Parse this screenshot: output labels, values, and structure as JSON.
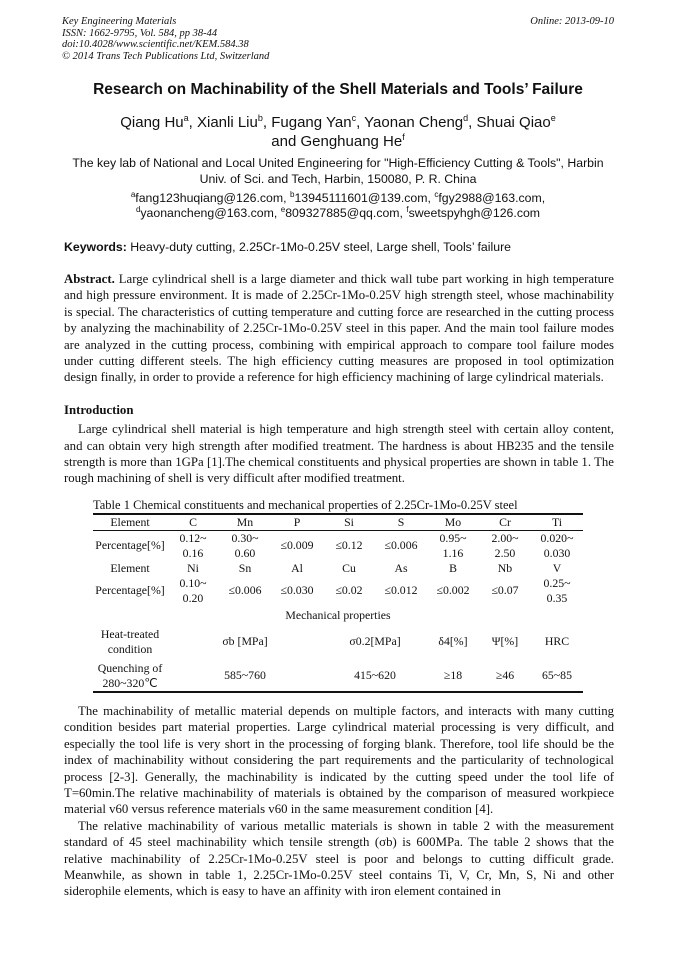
{
  "header": {
    "journal": "Key Engineering Materials",
    "issn": "ISSN: 1662-9795, Vol. 584, pp 38-44",
    "doi": "doi:10.4028/www.scientific.net/KEM.584.38",
    "copyright": "© 2014 Trans Tech Publications Ltd, Switzerland",
    "online": "Online: 2013-09-10"
  },
  "title": "Research on Machinability of the Shell Materials and Tools’ Failure",
  "authors": [
    {
      "name": "Qiang Hu",
      "sup": "a"
    },
    {
      "name": "Xianli Liu",
      "sup": "b"
    },
    {
      "name": "Fugang Yan",
      "sup": "c"
    },
    {
      "name": "Yaonan Cheng",
      "sup": "d"
    },
    {
      "name": "Shuai Qiao",
      "sup": "e"
    },
    {
      "name": "Genghuang He",
      "sup": "f"
    }
  ],
  "and": "and",
  "affiliation": "The key lab of National and Local United Engineering for \"High-Efficiency Cutting & Tools\", Harbin Univ. of Sci. and Tech, Harbin, 150080, P. R. China",
  "emails": [
    {
      "sup": "a",
      "addr": "fang123huqiang@126.com,"
    },
    {
      "sup": "b",
      "addr": "13945111601@139.com,"
    },
    {
      "sup": "c",
      "addr": "fgy2988@163.com,"
    },
    {
      "sup": "d",
      "addr": "yaonancheng@163.com,"
    },
    {
      "sup": "e",
      "addr": "809327885@qq.com,"
    },
    {
      "sup": "f",
      "addr": "sweetspyhgh@126.com"
    }
  ],
  "keywords": {
    "label": "Keywords:",
    "text": " Heavy-duty cutting, 2.25Cr-1Mo-0.25V steel, Large shell, Tools’ failure"
  },
  "abstract": {
    "label": "Abstract.",
    "text": " Large cylindrical shell is a large diameter and thick wall tube part working in high temperature and high pressure environment. It is made of 2.25Cr-1Mo-0.25V high strength steel, whose machinability is special. The characteristics of cutting temperature and cutting force are researched in the cutting process by analyzing the machinability of 2.25Cr-1Mo-0.25V steel in this paper. And the main tool failure modes are analyzed in the cutting process, combining with empirical approach to compare tool failure modes under cutting different steels. The high efficiency cutting measures are proposed in tool optimization design finally, in order to provide a reference for high efficiency machining of large cylindrical materials."
  },
  "intro": {
    "heading": "Introduction",
    "p1": "Large cylindrical shell material is high temperature and high strength steel with certain alloy content, and can obtain very high strength after modified treatment. The hardness is about HB235 and the tensile strength is more than 1GPa [1].The chemical constituents and physical properties are shown in table 1. The rough machining of shell is very difficult after modified treatment."
  },
  "table1": {
    "caption": "Table 1    Chemical constituents and mechanical properties of 2.25Cr-1Mo-0.25V steel",
    "rows": [
      [
        "Element",
        "C",
        "Mn",
        "P",
        "Si",
        "S",
        "Mo",
        "Cr",
        "Ti"
      ],
      [
        "Percentage[%]",
        "0.12~ 0.16",
        "0.30~ 0.60",
        "≤0.009",
        "≤0.12",
        "≤0.006",
        "0.95~ 1.16",
        "2.00~ 2.50",
        "0.020~ 0.030"
      ],
      [
        "Element",
        "Ni",
        "Sn",
        "Al",
        "Cu",
        "As",
        "B",
        "Nb",
        "V"
      ],
      [
        "Percentage[%]",
        "0.10~ 0.20",
        "≤0.006",
        "≤0.030",
        "≤0.02",
        "≤0.012",
        "≤0.002",
        "≤0.07",
        "0.25~ 0.35"
      ]
    ],
    "mech_title": "Mechanical properties",
    "mech_header": [
      "Heat-treated condition",
      "σb [MPa]",
      "σ0.2[MPa]",
      "δ4[%]",
      "Ψ[%]",
      "HRC"
    ],
    "mech_row": [
      "Quenching of 280~320℃",
      "585~760",
      "415~620",
      "≥18",
      "≥46",
      "65~85"
    ]
  },
  "body": {
    "p2": "The machinability of metallic material depends on multiple factors, and interacts with many cutting condition besides part material properties. Large cylindrical material processing is very difficult, and especially the tool life is very short in the processing of forging blank. Therefore, tool life should be the index of machinability without considering the part requirements and the particularity of technological process [2-3]. Generally, the machinability is indicated by the cutting speed under the tool life of T=60min.The relative machinability of materials is obtained by the comparison of measured workpiece material v60 versus reference materials v60 in the same measurement condition [4].",
    "p3": "The relative machinability of various metallic materials is shown in table 2 with the measurement standard of 45 steel machinability which tensile strength (σb) is 600MPa. The table 2 shows that the relative machinability of 2.25Cr-1Mo-0.25V steel is poor and belongs to cutting difficult grade. Meanwhile, as shown in table 1, 2.25Cr-1Mo-0.25V steel contains Ti, V, Cr, Mn, S, Ni and other siderophile elements, which is easy to have an affinity with iron element contained in"
  }
}
